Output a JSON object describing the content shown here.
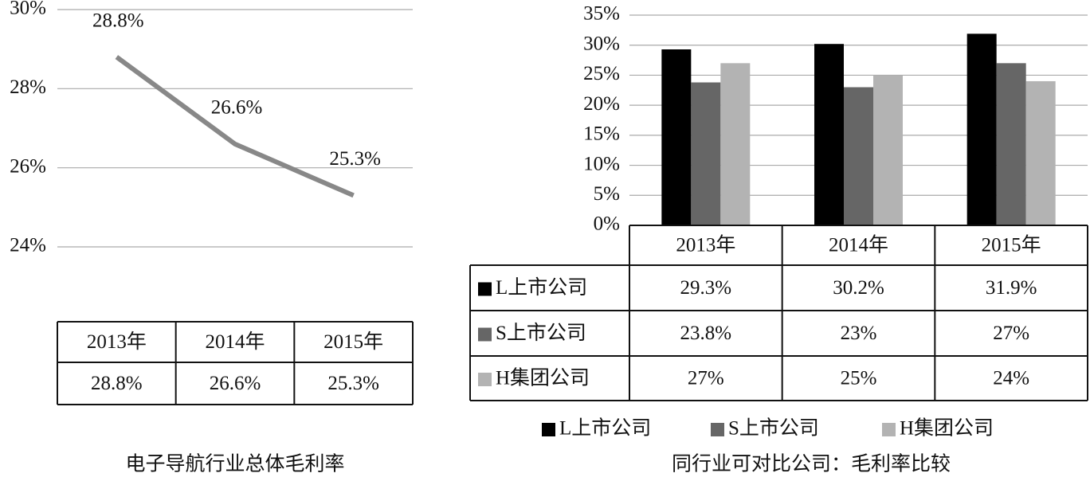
{
  "chart_data": [
    {
      "type": "line",
      "title": "电子导航行业总体毛利率",
      "categories": [
        "2013年",
        "2014年",
        "2015年"
      ],
      "values": [
        28.8,
        26.6,
        25.3
      ],
      "value_labels": [
        "28.8%",
        "26.6%",
        "25.3%"
      ],
      "color": "#888888",
      "ylim": [
        24,
        30
      ],
      "yticks": [
        {
          "value": 24,
          "label": "24%"
        },
        {
          "value": 26,
          "label": "26%"
        },
        {
          "value": 28,
          "label": "28%"
        },
        {
          "value": 30,
          "label": "30%"
        }
      ],
      "grid": true
    },
    {
      "type": "bar",
      "title": "同行业可对比公司：毛利率比较",
      "categories": [
        "2013年",
        "2014年",
        "2015年"
      ],
      "series": [
        {
          "name": "L上市公司",
          "color": "#000000",
          "values": [
            29.3,
            30.2,
            31.9
          ],
          "value_labels": [
            "29.3%",
            "30.2%",
            "31.9%"
          ]
        },
        {
          "name": "S上市公司",
          "color": "#666666",
          "values": [
            23.8,
            23,
            27
          ],
          "value_labels": [
            "23.8%",
            "23%",
            "27%"
          ]
        },
        {
          "name": "H集团公司",
          "color": "#b3b3b3",
          "values": [
            27,
            25,
            24
          ],
          "value_labels": [
            "27%",
            "25%",
            "24%"
          ]
        }
      ],
      "ylim": [
        0,
        35
      ],
      "yticks": [
        {
          "value": 0,
          "label": "0%"
        },
        {
          "value": 5,
          "label": "5%"
        },
        {
          "value": 10,
          "label": "10%"
        },
        {
          "value": 15,
          "label": "15%"
        },
        {
          "value": 20,
          "label": "20%"
        },
        {
          "value": 25,
          "label": "25%"
        },
        {
          "value": 30,
          "label": "30%"
        },
        {
          "value": 35,
          "label": "35%"
        }
      ],
      "grid": true,
      "legend": "bottom"
    }
  ]
}
